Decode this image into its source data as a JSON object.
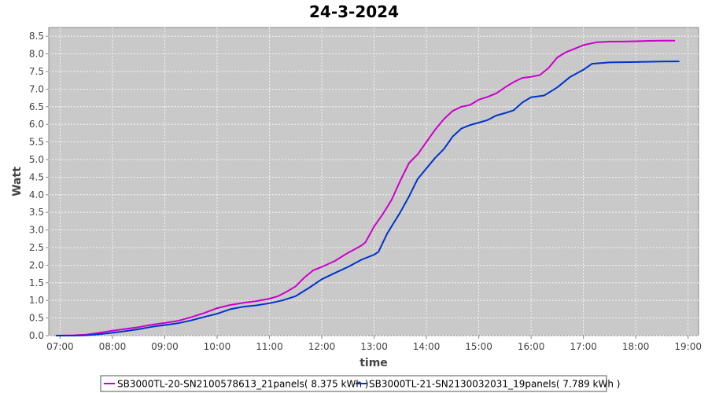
{
  "chart_data": {
    "type": "line",
    "title": "24-3-2024",
    "xlabel": "time",
    "ylabel": "Watt",
    "x_ticks": [
      "07:00",
      "08:00",
      "09:00",
      "10:00",
      "11:00",
      "12:00",
      "13:00",
      "14:00",
      "15:00",
      "16:00",
      "17:00",
      "18:00",
      "19:00"
    ],
    "y_ticks": [
      "0.0",
      "0.5",
      "1.0",
      "1.5",
      "2.0",
      "2.5",
      "3.0",
      "3.5",
      "4.0",
      "4.5",
      "5.0",
      "5.5",
      "6.0",
      "6.5",
      "7.0",
      "7.5",
      "8.0",
      "8.5"
    ],
    "xlim": [
      "06:47",
      "19:12"
    ],
    "ylim": [
      0,
      8.75
    ],
    "grid": true,
    "legend_position": "bottom",
    "series": [
      {
        "name": "SB3000TL-20-SN2100578613_21panels( 8.375 kWh )",
        "color": "#cc00cc",
        "points": [
          [
            "06:55",
            0.0
          ],
          [
            "07:15",
            0.01
          ],
          [
            "07:30",
            0.03
          ],
          [
            "07:45",
            0.08
          ],
          [
            "08:00",
            0.14
          ],
          [
            "08:15",
            0.19
          ],
          [
            "08:30",
            0.24
          ],
          [
            "08:45",
            0.31
          ],
          [
            "09:00",
            0.36
          ],
          [
            "09:15",
            0.42
          ],
          [
            "09:30",
            0.52
          ],
          [
            "09:45",
            0.64
          ],
          [
            "10:00",
            0.78
          ],
          [
            "10:15",
            0.87
          ],
          [
            "10:30",
            0.93
          ],
          [
            "10:45",
            0.98
          ],
          [
            "11:00",
            1.05
          ],
          [
            "11:10",
            1.12
          ],
          [
            "11:20",
            1.25
          ],
          [
            "11:30",
            1.4
          ],
          [
            "11:40",
            1.65
          ],
          [
            "11:50",
            1.85
          ],
          [
            "12:00",
            1.95
          ],
          [
            "12:15",
            2.12
          ],
          [
            "12:30",
            2.35
          ],
          [
            "12:45",
            2.55
          ],
          [
            "12:50",
            2.65
          ],
          [
            "13:00",
            3.1
          ],
          [
            "13:10",
            3.45
          ],
          [
            "13:20",
            3.85
          ],
          [
            "13:30",
            4.4
          ],
          [
            "13:40",
            4.9
          ],
          [
            "13:50",
            5.15
          ],
          [
            "14:00",
            5.5
          ],
          [
            "14:10",
            5.85
          ],
          [
            "14:20",
            6.15
          ],
          [
            "14:30",
            6.38
          ],
          [
            "14:40",
            6.5
          ],
          [
            "14:50",
            6.55
          ],
          [
            "15:00",
            6.7
          ],
          [
            "15:10",
            6.78
          ],
          [
            "15:20",
            6.88
          ],
          [
            "15:30",
            7.05
          ],
          [
            "15:40",
            7.2
          ],
          [
            "15:50",
            7.32
          ],
          [
            "16:00",
            7.35
          ],
          [
            "16:10",
            7.4
          ],
          [
            "16:20",
            7.6
          ],
          [
            "16:30",
            7.9
          ],
          [
            "16:40",
            8.05
          ],
          [
            "16:50",
            8.15
          ],
          [
            "17:00",
            8.25
          ],
          [
            "17:15",
            8.33
          ],
          [
            "17:30",
            8.35
          ],
          [
            "17:45",
            8.35
          ],
          [
            "18:00",
            8.36
          ],
          [
            "18:15",
            8.37
          ],
          [
            "18:30",
            8.375
          ],
          [
            "18:45",
            8.375
          ]
        ]
      },
      {
        "name": "SB3000TL-21-SN2130032031_19panels( 7.789 kWh )",
        "color": "#0033cc",
        "points": [
          [
            "06:55",
            0.0
          ],
          [
            "07:15",
            0.0
          ],
          [
            "07:30",
            0.01
          ],
          [
            "07:45",
            0.04
          ],
          [
            "08:00",
            0.08
          ],
          [
            "08:15",
            0.13
          ],
          [
            "08:30",
            0.18
          ],
          [
            "08:45",
            0.25
          ],
          [
            "09:00",
            0.3
          ],
          [
            "09:15",
            0.35
          ],
          [
            "09:30",
            0.43
          ],
          [
            "09:45",
            0.53
          ],
          [
            "10:00",
            0.62
          ],
          [
            "10:15",
            0.75
          ],
          [
            "10:30",
            0.82
          ],
          [
            "10:45",
            0.86
          ],
          [
            "11:00",
            0.92
          ],
          [
            "11:15",
            1.0
          ],
          [
            "11:30",
            1.12
          ],
          [
            "11:45",
            1.35
          ],
          [
            "12:00",
            1.6
          ],
          [
            "12:15",
            1.78
          ],
          [
            "12:30",
            1.95
          ],
          [
            "12:45",
            2.15
          ],
          [
            "13:00",
            2.3
          ],
          [
            "13:05",
            2.38
          ],
          [
            "13:15",
            2.9
          ],
          [
            "13:30",
            3.5
          ],
          [
            "13:40",
            3.95
          ],
          [
            "13:50",
            4.45
          ],
          [
            "14:00",
            4.75
          ],
          [
            "14:10",
            5.05
          ],
          [
            "14:20",
            5.3
          ],
          [
            "14:30",
            5.65
          ],
          [
            "14:40",
            5.88
          ],
          [
            "14:50",
            5.98
          ],
          [
            "15:00",
            6.05
          ],
          [
            "15:10",
            6.12
          ],
          [
            "15:20",
            6.25
          ],
          [
            "15:30",
            6.32
          ],
          [
            "15:40",
            6.4
          ],
          [
            "15:50",
            6.62
          ],
          [
            "16:00",
            6.77
          ],
          [
            "16:15",
            6.82
          ],
          [
            "16:30",
            7.05
          ],
          [
            "16:45",
            7.35
          ],
          [
            "17:00",
            7.55
          ],
          [
            "17:10",
            7.72
          ],
          [
            "17:30",
            7.76
          ],
          [
            "18:00",
            7.77
          ],
          [
            "18:30",
            7.785
          ],
          [
            "18:50",
            7.789
          ]
        ]
      }
    ]
  }
}
